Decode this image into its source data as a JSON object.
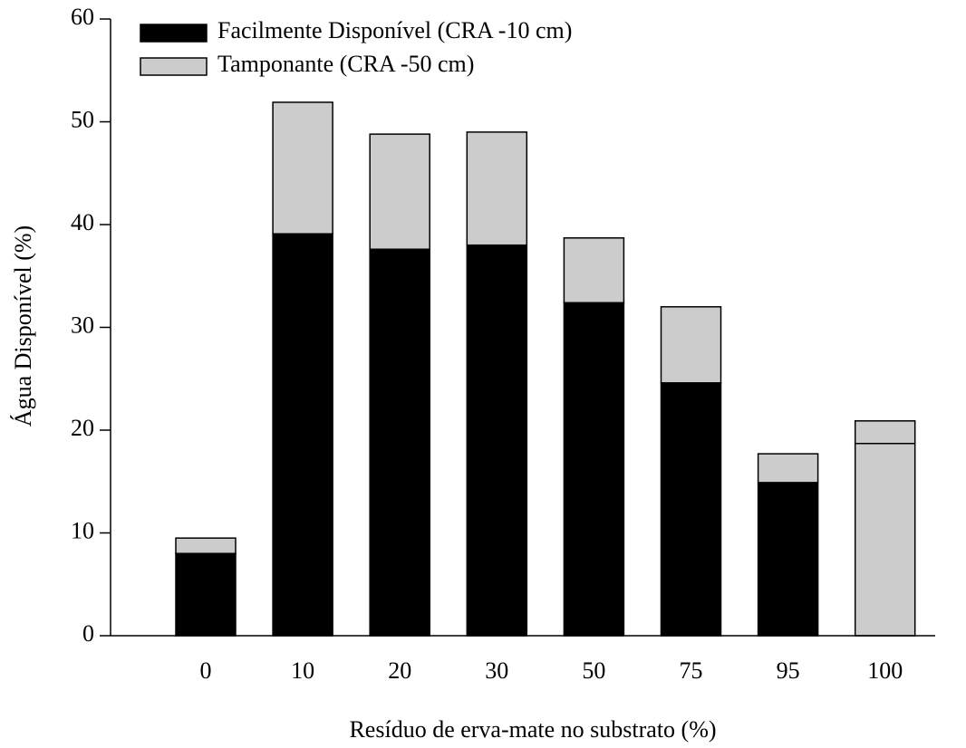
{
  "chart_data": {
    "type": "stacked_bar",
    "x_label": "Resíduo de erva-mate no substrato (%)",
    "y_label": "Água Disponível (%)",
    "categories": [
      "0",
      "10",
      "20",
      "30",
      "50",
      "75",
      "95",
      "100"
    ],
    "series": [
      {
        "name": "Facilmente Disponível (CRA -10 cm)",
        "color": "#000000",
        "colors": [
          "#000000",
          "#000000",
          "#000000",
          "#000000",
          "#000000",
          "#000000",
          "#000000",
          "#cccccc"
        ],
        "values": [
          8.0,
          39.1,
          37.6,
          38.0,
          32.4,
          24.6,
          14.9,
          18.7
        ]
      },
      {
        "name": "Tamponante (CRA -50 cm)",
        "color": "#cccccc",
        "values": [
          1.5,
          12.8,
          11.2,
          11.0,
          6.3,
          7.4,
          2.8,
          2.2
        ]
      }
    ],
    "ylim": [
      0,
      60
    ],
    "yticks": [
      0,
      10,
      20,
      30,
      40,
      50,
      60
    ],
    "legend": "upper-left"
  }
}
